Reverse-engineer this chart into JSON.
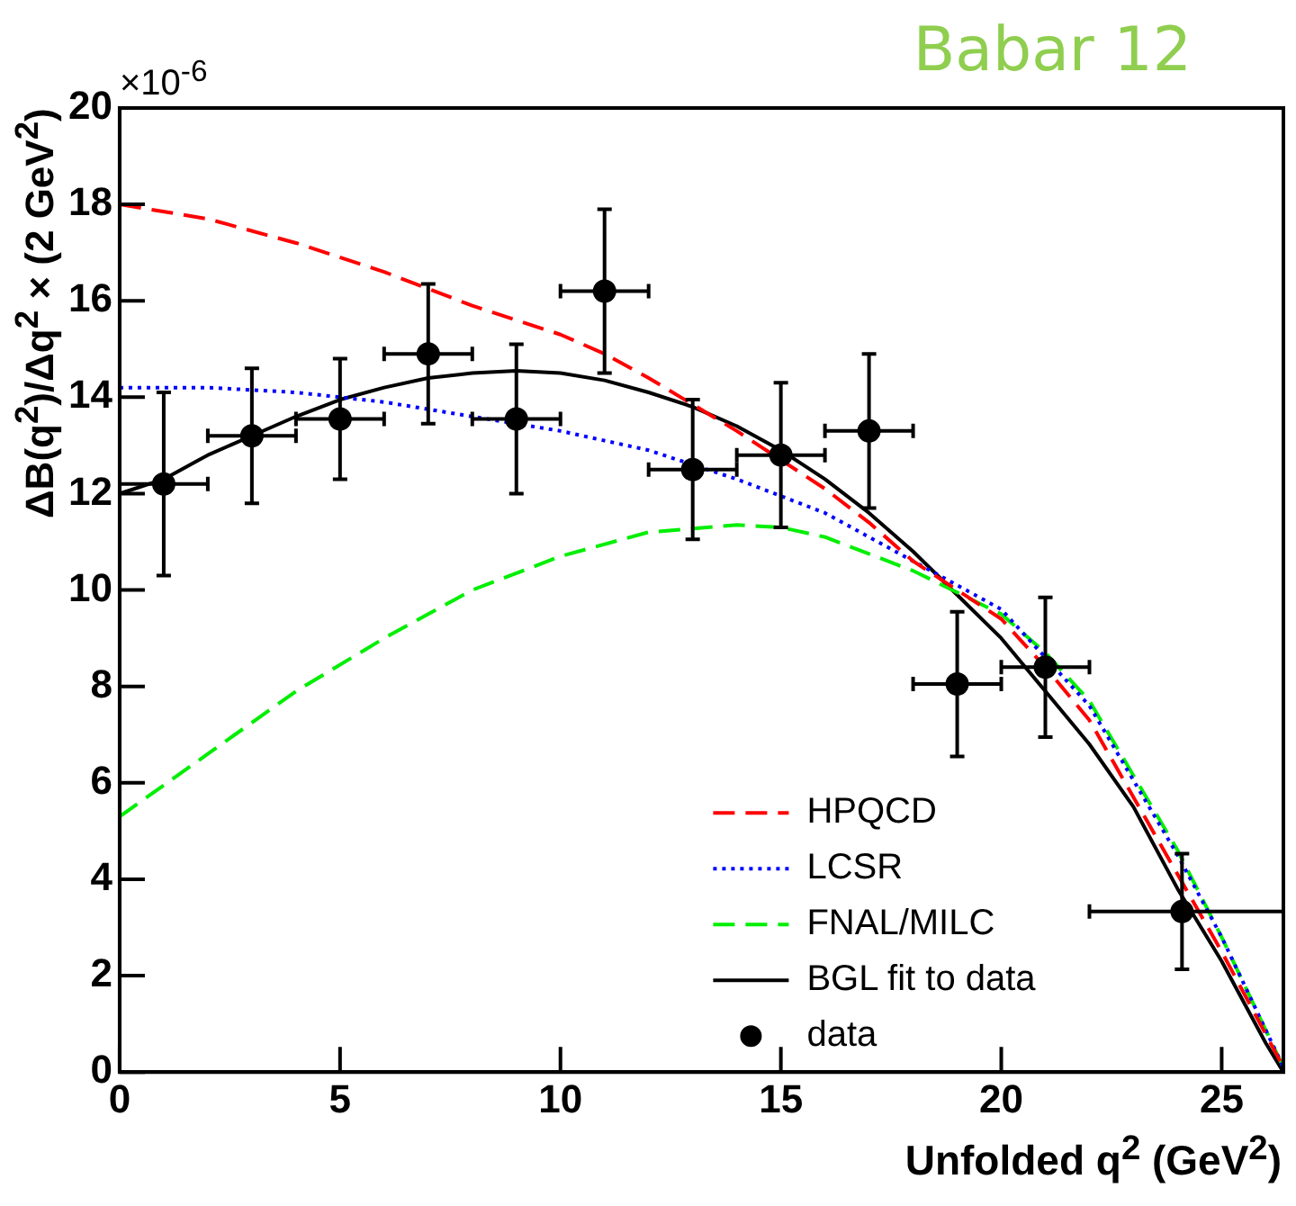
{
  "chart_data": {
    "type": "line",
    "title": "Babar 12",
    "xlabel": "Unfolded q$^{2}$ (GeV$^{2}$)",
    "ylabel": "ΔB(q$^{2}$)/Δq$^{2}$ × (2 GeV$^{2}$)",
    "annotations": [
      "×10$^{-6}$"
    ],
    "xlim": [
      0,
      26.4
    ],
    "ylim": [
      0,
      20
    ],
    "xticks": [
      0,
      5,
      10,
      15,
      20,
      25
    ],
    "yticks": [
      0,
      2,
      4,
      6,
      8,
      10,
      12,
      14,
      16,
      18,
      20
    ],
    "grid": false,
    "legend": "bottom right",
    "marker": "none",
    "series": [
      {
        "name": "HPQCD",
        "color": "#ff0000",
        "line_style": "dashed",
        "x": [
          0,
          2,
          4,
          6,
          8,
          10,
          11,
          12,
          14,
          16,
          17,
          18,
          20,
          21,
          22,
          24,
          25,
          26.4
        ],
        "values": [
          18.0,
          17.7,
          17.2,
          16.6,
          15.9,
          15.3,
          14.9,
          14.4,
          13.3,
          12.1,
          11.4,
          10.6,
          9.4,
          8.4,
          7.3,
          4.1,
          2.5,
          0.1
        ]
      },
      {
        "name": "LCSR",
        "color": "#0000ff",
        "line_style": "dotted",
        "x": [
          0,
          2,
          4,
          6,
          8,
          10,
          12,
          14,
          16,
          18,
          20,
          21,
          22,
          24,
          25,
          26.4
        ],
        "values": [
          14.2,
          14.2,
          14.1,
          13.9,
          13.6,
          13.3,
          12.9,
          12.3,
          11.6,
          10.6,
          9.6,
          8.6,
          7.6,
          4.5,
          2.8,
          0.1
        ]
      },
      {
        "name": "FNAL/MILC",
        "color": "#00ee00",
        "line_style": "dashed",
        "x": [
          0,
          2,
          4,
          6,
          8,
          10,
          12,
          14,
          15,
          16,
          18,
          20,
          21,
          22,
          24,
          25,
          26.4
        ],
        "values": [
          5.3,
          6.6,
          7.9,
          9.0,
          10.0,
          10.7,
          11.2,
          11.35,
          11.3,
          11.1,
          10.4,
          9.5,
          8.7,
          7.7,
          4.6,
          2.8,
          0.1
        ]
      },
      {
        "name": "BGL fit to data",
        "color": "#000000",
        "line_style": "solid",
        "x": [
          0,
          1,
          2,
          3,
          4,
          5,
          6,
          7,
          8,
          9,
          10,
          11,
          12,
          13,
          14,
          15,
          16,
          17,
          18,
          19,
          20,
          21,
          22,
          23,
          24,
          25,
          26,
          26.4
        ],
        "values": [
          12.0,
          12.3,
          12.8,
          13.2,
          13.6,
          13.95,
          14.2,
          14.4,
          14.5,
          14.55,
          14.5,
          14.35,
          14.1,
          13.8,
          13.4,
          12.9,
          12.3,
          11.6,
          10.8,
          9.9,
          9.0,
          7.9,
          6.8,
          5.5,
          3.8,
          2.3,
          0.6,
          0
        ]
      },
      {
        "name": "data",
        "type": "scatter",
        "color": "#000000",
        "marker": "circle",
        "x": [
          1,
          3,
          5,
          7,
          9,
          11,
          13,
          15,
          17,
          19,
          21,
          24.1
        ],
        "values": [
          12.2,
          13.2,
          13.55,
          14.9,
          13.55,
          16.2,
          12.5,
          12.8,
          13.3,
          8.05,
          8.4,
          3.33
        ],
        "errors": [
          1.9,
          1.4,
          1.25,
          1.45,
          1.55,
          1.7,
          1.45,
          1.5,
          1.6,
          1.5,
          1.45,
          1.2
        ],
        "xerrors": [
          1,
          1,
          1,
          1,
          1,
          1,
          1,
          1,
          1,
          1,
          1,
          [
            22.0,
            26.4
          ]
        ]
      }
    ]
  }
}
